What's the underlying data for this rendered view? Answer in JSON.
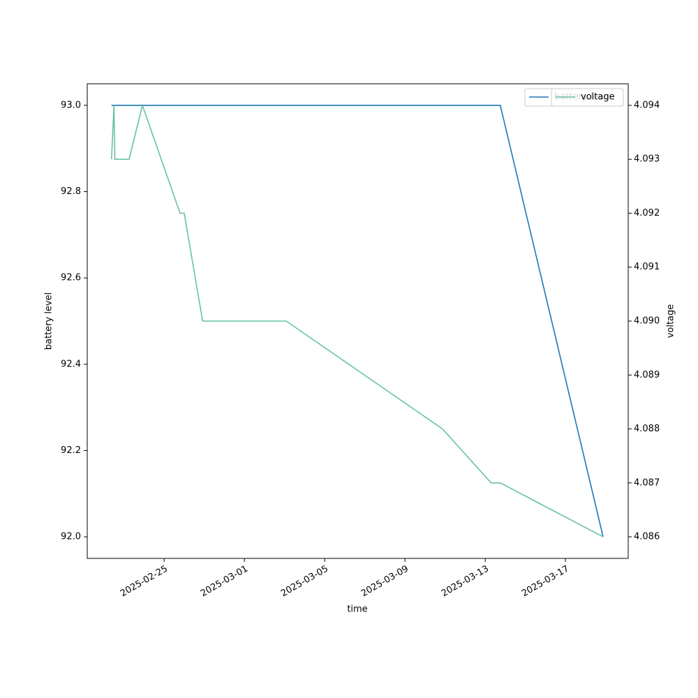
{
  "chart_data": {
    "type": "line",
    "xlabel": "time",
    "ylabel": "battery level",
    "y2label": "voltage",
    "xlim": [
      "2025-02-21T04:00",
      "2025-03-20T03:00"
    ],
    "xticks": [
      "2025-02-25",
      "2025-03-01",
      "2025-03-05",
      "2025-03-09",
      "2025-03-13",
      "2025-03-17"
    ],
    "ylim": [
      91.95,
      93.05
    ],
    "yticks": [
      {
        "value": 92.0,
        "label": "92.0"
      },
      {
        "value": 92.2,
        "label": "92.2"
      },
      {
        "value": 92.4,
        "label": "92.4"
      },
      {
        "value": 92.6,
        "label": "92.6"
      },
      {
        "value": 92.8,
        "label": "92.8"
      },
      {
        "value": 93.0,
        "label": "93.0"
      }
    ],
    "y2lim": [
      4.0856,
      4.0944
    ],
    "y2ticks": [
      4.086,
      4.087,
      4.088,
      4.089,
      {
        "value": 4.09,
        "label": "4.090"
      },
      4.091,
      4.092,
      4.093,
      4.094
    ],
    "legend": "upper right",
    "series": [
      {
        "name": "battery level",
        "color": "#1f77b4",
        "x": [
          "2025-02-22T09:00",
          "2025-03-13T18:00",
          "2025-03-18T21:00"
        ],
        "values": [
          93.0,
          93.0,
          92.0
        ]
      },
      {
        "name": "voltage",
        "color": "#66c2a5",
        "axis": "y2",
        "x": [
          "2025-02-22T09:00",
          "2025-02-22T12:00",
          "2025-02-22T13:00",
          "2025-02-23T06:00",
          "2025-02-23T22:00",
          "2025-02-25T19:00",
          "2025-02-26T00:00",
          "2025-02-26T22:00",
          "2025-03-03T02:00",
          "2025-03-10T21:00",
          "2025-03-13T07:00",
          "2025-03-13T18:00",
          "2025-03-18T21:00"
        ],
        "values": [
          4.093,
          4.094,
          4.093,
          4.093,
          4.094,
          4.092,
          4.092,
          4.09,
          4.09,
          4.088,
          4.087,
          4.087,
          4.086
        ]
      }
    ]
  }
}
